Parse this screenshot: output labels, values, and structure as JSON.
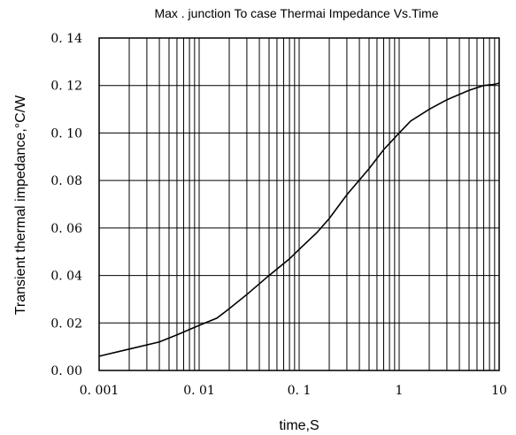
{
  "chart_data": {
    "type": "line",
    "title": "Max . junction To case Thermai Impedance Vs.Time",
    "xlabel": "time,S",
    "ylabel": "Transient thermal impedance,°C/W",
    "x_scale": "log",
    "xlim": [
      0.001,
      10
    ],
    "ylim": [
      0.0,
      0.14
    ],
    "grid": true,
    "x_tick_values": [
      0.001,
      0.01,
      0.1,
      1,
      10
    ],
    "x_tick_labels": [
      "0. 001",
      "0. 01",
      "0. 1",
      "1",
      "10"
    ],
    "y_tick_values": [
      0.0,
      0.02,
      0.04,
      0.06,
      0.08,
      0.1,
      0.12,
      0.14
    ],
    "y_tick_labels": [
      "0. 00",
      "0. 02",
      "0. 04",
      "0. 06",
      "0. 08",
      "0. 10",
      "0. 12",
      "0. 14"
    ],
    "series": [
      {
        "x": [
          0.001,
          0.002,
          0.004,
          0.006,
          0.01,
          0.015,
          0.02,
          0.03,
          0.05,
          0.08,
          0.1,
          0.15,
          0.2,
          0.3,
          0.5,
          0.7,
          1.0,
          1.3,
          2.0,
          3.0,
          5.0,
          7.0,
          9.0,
          10.0
        ],
        "y": [
          0.006,
          0.009,
          0.012,
          0.015,
          0.019,
          0.022,
          0.026,
          0.032,
          0.04,
          0.047,
          0.051,
          0.058,
          0.064,
          0.074,
          0.085,
          0.093,
          0.1,
          0.105,
          0.11,
          0.114,
          0.118,
          0.12,
          0.1205,
          0.121
        ]
      }
    ]
  }
}
